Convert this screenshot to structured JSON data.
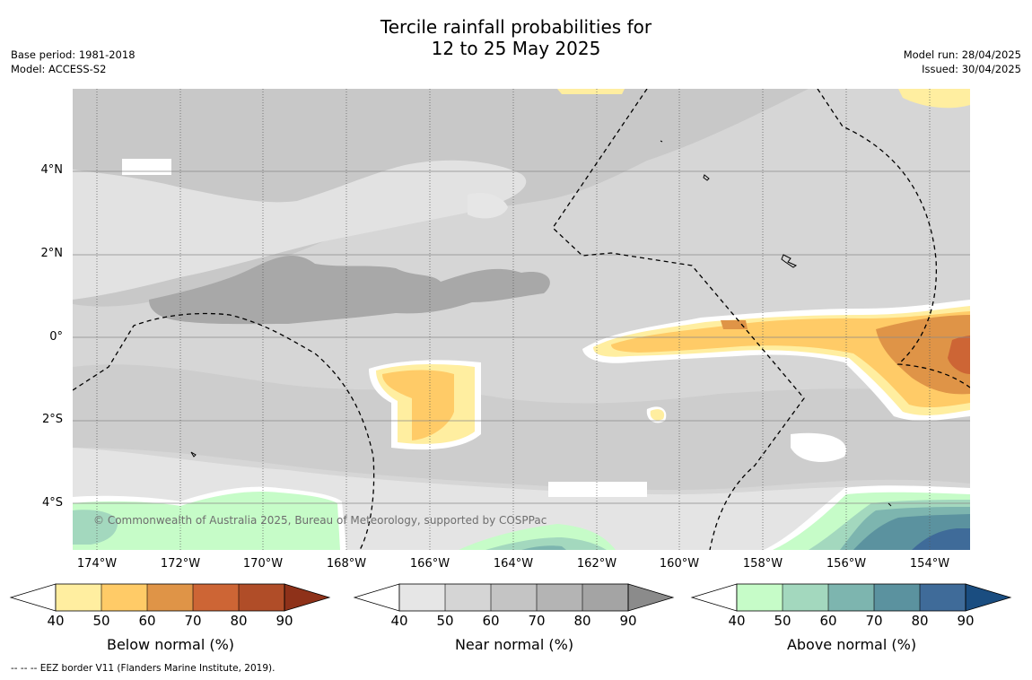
{
  "title": {
    "line1": "Tercile rainfall probabilities for",
    "line2": "12 to 25 May 2025"
  },
  "meta_left": {
    "base_period": "Base period: 1981-2018",
    "model": "Model: ACCESS-S2"
  },
  "meta_right": {
    "model_run": "Model run: 28/04/2025",
    "issued": "Issued: 30/04/2025"
  },
  "map": {
    "lat_labels": [
      "4°N",
      "2°N",
      "0°",
      "2°S",
      "4°S"
    ],
    "lon_labels": [
      "174°W",
      "172°W",
      "170°W",
      "168°W",
      "166°W",
      "164°W",
      "162°W",
      "160°W",
      "158°W",
      "156°W",
      "154°W"
    ],
    "copyright": "© Commonwealth of Australia 2025, Bureau of Meteorology, supported by COSPPac",
    "colors": {
      "background_near_normal": "#d6d6d6",
      "land_outline": "#000000",
      "eez_border": "#000000"
    }
  },
  "colorbars": [
    {
      "label": "Below normal (%)",
      "ticks": [
        "40",
        "50",
        "60",
        "70",
        "80",
        "90"
      ],
      "colors": [
        "#ffeea0",
        "#ffcb67",
        "#df9447",
        "#cd6535",
        "#b04d28",
        "#8e3119"
      ]
    },
    {
      "label": "Near normal (%)",
      "ticks": [
        "40",
        "50",
        "60",
        "70",
        "80",
        "90"
      ],
      "colors": [
        "#e6e6e6",
        "#d5d5d5",
        "#c4c4c4",
        "#b4b4b4",
        "#a4a4a4",
        "#8b8b8b"
      ]
    },
    {
      "label": "Above normal (%)",
      "ticks": [
        "40",
        "50",
        "60",
        "70",
        "80",
        "90"
      ],
      "colors": [
        "#c6fcc8",
        "#a3d8be",
        "#7db5af",
        "#5b929f",
        "#3f6b99",
        "#1a4d80"
      ]
    }
  ],
  "footnote": "-- -- -- EEZ border V11 (Flanders Marine Institute, 2019)."
}
